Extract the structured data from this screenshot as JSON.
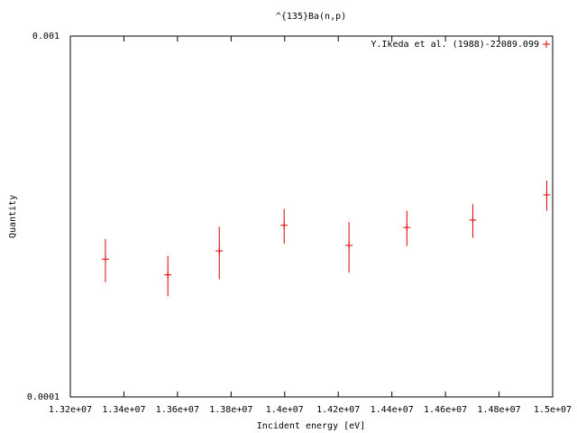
{
  "chart_data": {
    "type": "errorbar",
    "title": "^{135}Ba(n,p)",
    "x_label": "Incident energy [eV]",
    "y_label": "Quantity",
    "y_log": true,
    "legend_position": "top-right",
    "xlim": [
      13200000,
      15000000
    ],
    "ylim": [
      0.0001,
      0.001
    ],
    "xticks": [
      {
        "value": 13200000,
        "label": "1.32e+07"
      },
      {
        "value": 13400000,
        "label": "1.34e+07"
      },
      {
        "value": 13600000,
        "label": "1.36e+07"
      },
      {
        "value": 13800000,
        "label": "1.38e+07"
      },
      {
        "value": 14000000,
        "label": "1.4e+07"
      },
      {
        "value": 14200000,
        "label": "1.42e+07"
      },
      {
        "value": 14400000,
        "label": "1.44e+07"
      },
      {
        "value": 14600000,
        "label": "1.46e+07"
      },
      {
        "value": 14800000,
        "label": "1.48e+07"
      },
      {
        "value": 15000000,
        "label": "1.5e+07"
      }
    ],
    "yticks": [
      0.0001,
      0.001
    ],
    "series": [
      {
        "name": "Y.Ikeda et al. (1988)-22089.099",
        "color": "#e00000",
        "x": [
          13331000,
          13564000,
          13756000,
          13998000,
          14240000,
          14456000,
          14702000,
          14978000
        ],
        "values": [
          0.000241,
          0.000218,
          0.000254,
          0.000299,
          0.000263,
          0.000295,
          0.000309,
          0.000363
        ],
        "errors": [
          3.3e-05,
          2.8e-05,
          4.2e-05,
          3.3e-05,
          4.2e-05,
          3.3e-05,
          3.3e-05,
          3.5e-05
        ]
      }
    ]
  }
}
